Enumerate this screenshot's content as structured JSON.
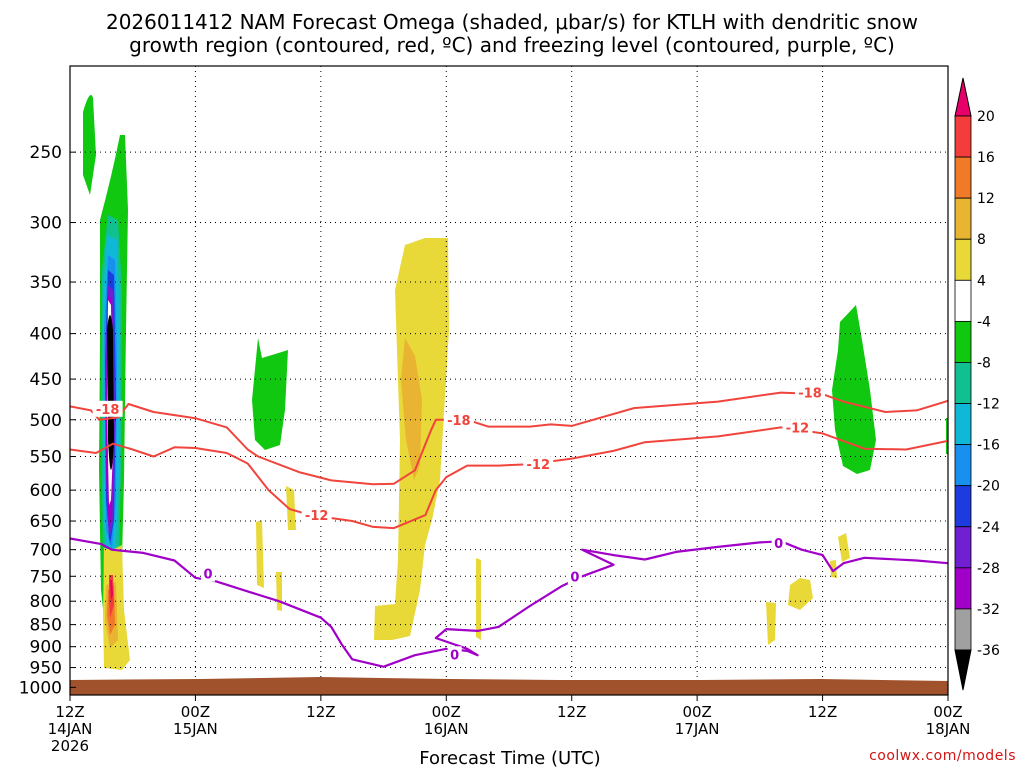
{
  "title_line1": "2026011412 NAM Forecast Omega (shaded, μbar/s) for KTLH with dendritic snow",
  "title_line2": "growth region (contoured, red, ºC) and freezing level (contoured, purple, ºC)",
  "credit": "coolwx.com/models",
  "chart_data": {
    "type": "time-height contour",
    "xlabel": "Forecast Time (UTC)",
    "x_range_hours": [
      0,
      84
    ],
    "x_ticks": [
      {
        "hour": 0,
        "line1": "12Z",
        "line2": "14JAN",
        "line3": "2026"
      },
      {
        "hour": 12,
        "line1": "00Z",
        "line2": "15JAN",
        "line3": ""
      },
      {
        "hour": 24,
        "line1": "12Z",
        "line2": "",
        "line3": ""
      },
      {
        "hour": 36,
        "line1": "00Z",
        "line2": "16JAN",
        "line3": ""
      },
      {
        "hour": 48,
        "line1": "12Z",
        "line2": "",
        "line3": ""
      },
      {
        "hour": 60,
        "line1": "00Z",
        "line2": "17JAN",
        "line3": ""
      },
      {
        "hour": 72,
        "line1": "12Z",
        "line2": "",
        "line3": ""
      },
      {
        "hour": 84,
        "line1": "00Z",
        "line2": "18JAN",
        "line3": ""
      }
    ],
    "y_levels_hPa": [
      250,
      300,
      350,
      400,
      450,
      500,
      550,
      600,
      650,
      700,
      750,
      800,
      850,
      900,
      950,
      1000
    ],
    "y_range_hPa": [
      200,
      1020
    ],
    "grid": true,
    "colorbar": {
      "labels": [
        "20",
        "16",
        "12",
        "8",
        "4",
        "-4",
        "-8",
        "-12",
        "-16",
        "-20",
        "-24",
        "-28",
        "-32",
        "-36"
      ],
      "colors": [
        "#e8006a",
        "#f43c3c",
        "#f07a28",
        "#e8b432",
        "#e8d838",
        "#ffffff",
        "#10c810",
        "#10c090",
        "#10b8d8",
        "#1890f0",
        "#1c3ce0",
        "#7020d0",
        "#a000c8",
        "#a0a0a0",
        "#000000"
      ]
    },
    "temperature_contours": [
      {
        "label": "-18",
        "color": "#f0443c",
        "points": [
          [
            0,
            483
          ],
          [
            2,
            488
          ],
          [
            2.8,
            500
          ],
          [
            4.6,
            497
          ],
          [
            5.6,
            480
          ],
          [
            8,
            490
          ],
          [
            12,
            498
          ],
          [
            15,
            510
          ],
          [
            17,
            540
          ],
          [
            18,
            550
          ],
          [
            22,
            573
          ],
          [
            25,
            585
          ],
          [
            29,
            591
          ],
          [
            31,
            590
          ],
          [
            33,
            570
          ],
          [
            34.5,
            515
          ],
          [
            35,
            500
          ],
          [
            38,
            500
          ],
          [
            40,
            509
          ],
          [
            44,
            509
          ],
          [
            46,
            506
          ],
          [
            48,
            508
          ],
          [
            54,
            485
          ],
          [
            62,
            477
          ],
          [
            68,
            466
          ],
          [
            72,
            468
          ],
          [
            74,
            477
          ],
          [
            78,
            490
          ],
          [
            81,
            488
          ],
          [
            84,
            476
          ]
        ],
        "labels_at": [
          [
            3.6,
            486
          ],
          [
            37.2,
            500
          ],
          [
            70.8,
            466
          ]
        ]
      },
      {
        "label": "-12",
        "color": "#f0443c",
        "points": [
          [
            0,
            540
          ],
          [
            2.5,
            545
          ],
          [
            4.1,
            532
          ],
          [
            6,
            540
          ],
          [
            8,
            550
          ],
          [
            10,
            537
          ],
          [
            12,
            538
          ],
          [
            15,
            545
          ],
          [
            17,
            560
          ],
          [
            19,
            600
          ],
          [
            21,
            630
          ],
          [
            23,
            640
          ],
          [
            27,
            650
          ],
          [
            29,
            660
          ],
          [
            31,
            662
          ],
          [
            34,
            640
          ],
          [
            35,
            600
          ],
          [
            36,
            580
          ],
          [
            38,
            563
          ],
          [
            41,
            563
          ],
          [
            44,
            561
          ],
          [
            48,
            553
          ],
          [
            52,
            542
          ],
          [
            55,
            530
          ],
          [
            62,
            522
          ],
          [
            68,
            510
          ],
          [
            72,
            518
          ],
          [
            76,
            539
          ],
          [
            80,
            540
          ],
          [
            84,
            528
          ]
        ],
        "labels_at": [
          [
            23.6,
            640
          ],
          [
            44.8,
            561
          ],
          [
            69.6,
            510
          ]
        ]
      }
    ],
    "freezing_level_contour": {
      "label": "0",
      "color": "#a000c8",
      "points": [
        [
          0,
          680
        ],
        [
          3,
          690
        ],
        [
          4,
          700
        ],
        [
          7,
          706
        ],
        [
          10,
          720
        ],
        [
          12,
          753
        ],
        [
          14,
          760
        ],
        [
          17,
          780
        ],
        [
          20,
          800
        ],
        [
          24,
          835
        ],
        [
          25,
          855
        ],
        [
          26,
          895
        ],
        [
          27,
          930
        ],
        [
          30,
          948
        ],
        [
          33,
          920
        ],
        [
          36,
          905
        ],
        [
          38,
          910
        ],
        [
          39,
          920
        ],
        [
          38,
          905
        ],
        [
          35,
          880
        ],
        [
          36,
          860
        ],
        [
          39,
          864
        ],
        [
          41,
          855
        ],
        [
          44,
          810
        ],
        [
          47,
          770
        ],
        [
          49,
          750
        ],
        [
          52,
          728
        ],
        [
          49,
          700
        ],
        [
          52,
          710
        ],
        [
          55,
          718
        ],
        [
          58,
          704
        ],
        [
          62,
          695
        ],
        [
          66,
          687
        ],
        [
          68,
          685
        ],
        [
          70,
          700
        ],
        [
          72,
          710
        ],
        [
          73,
          740
        ],
        [
          74,
          725
        ],
        [
          76,
          715
        ],
        [
          81,
          720
        ],
        [
          84,
          725
        ]
      ],
      "labels_at": [
        [
          13.2,
          745
        ],
        [
          36.8,
          918
        ],
        [
          48.3,
          750
        ],
        [
          67.8,
          688
        ]
      ]
    },
    "omega_features": [
      {
        "sign": "negative",
        "center_hour": 3.5,
        "levels_hPa": [
          230,
          700
        ],
        "min_value": -36
      },
      {
        "sign": "negative",
        "center_hour": 1.5,
        "levels_hPa": [
          210,
          285
        ],
        "min_value": -4
      },
      {
        "sign": "positive",
        "center_hour": 3.8,
        "levels_hPa": [
          715,
          970
        ],
        "max_value": 20
      },
      {
        "sign": "negative",
        "center_hour": 19.0,
        "levels_hPa": [
          440,
          560
        ],
        "min_value": -8
      },
      {
        "sign": "positive",
        "center_hour": 35.5,
        "levels_hPa": [
          320,
          900
        ],
        "max_value": 8
      },
      {
        "sign": "negative",
        "center_hour": 74.5,
        "levels_hPa": [
          380,
          620
        ],
        "min_value": -8
      }
    ]
  }
}
